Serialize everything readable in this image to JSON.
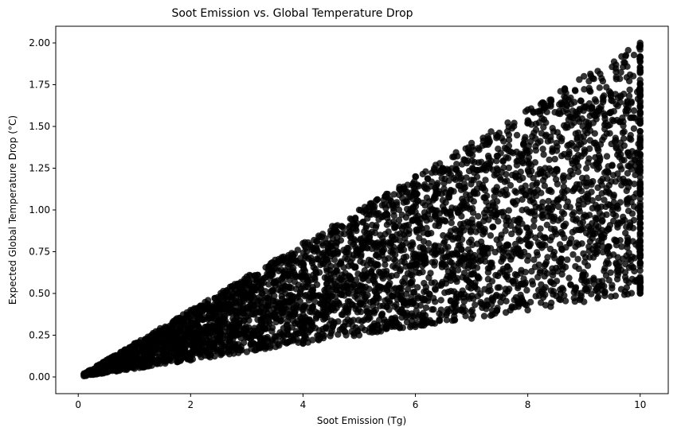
{
  "chart_data": {
    "type": "scatter",
    "title": "Soot Emission vs. Global Temperature Drop",
    "xlabel": "Soot Emission (Tg)",
    "ylabel": "Expected Global Temperature Drop (°C)",
    "xlim": [
      -0.4,
      10.5
    ],
    "ylim": [
      -0.1,
      2.1
    ],
    "x_ticks": [
      0,
      2,
      4,
      6,
      8,
      10
    ],
    "x_tick_labels": [
      "0",
      "2",
      "4",
      "6",
      "8",
      "10"
    ],
    "y_ticks": [
      0.0,
      0.25,
      0.5,
      0.75,
      1.0,
      1.25,
      1.5,
      1.75,
      2.0
    ],
    "y_tick_labels": [
      "0.00",
      "0.25",
      "0.50",
      "0.75",
      "1.00",
      "1.25",
      "1.50",
      "1.75",
      "2.00"
    ],
    "grid": false,
    "marker_color": "#000000",
    "marker_opacity": 0.8,
    "series": [
      {
        "x_range": [
          0.1,
          10.0
        ],
        "y_over_x_range": [
          0.05,
          0.2
        ],
        "points": [
          [
            0.1,
            0.005
          ],
          [
            0.1,
            0.02
          ],
          [
            0.5,
            0.03
          ],
          [
            0.5,
            0.1
          ],
          [
            1.0,
            0.05
          ],
          [
            1.0,
            0.2
          ],
          [
            2.0,
            0.1
          ],
          [
            2.0,
            0.4
          ],
          [
            3.0,
            0.15
          ],
          [
            3.0,
            0.6
          ],
          [
            4.0,
            0.2
          ],
          [
            4.0,
            0.8
          ],
          [
            5.0,
            0.25
          ],
          [
            5.0,
            1.0
          ],
          [
            6.0,
            0.3
          ],
          [
            6.0,
            1.2
          ],
          [
            7.0,
            0.35
          ],
          [
            7.0,
            1.4
          ],
          [
            8.0,
            0.4
          ],
          [
            8.0,
            1.6
          ],
          [
            9.0,
            0.45
          ],
          [
            9.0,
            1.8
          ],
          [
            10.0,
            0.5
          ],
          [
            10.0,
            2.0
          ]
        ]
      }
    ]
  }
}
